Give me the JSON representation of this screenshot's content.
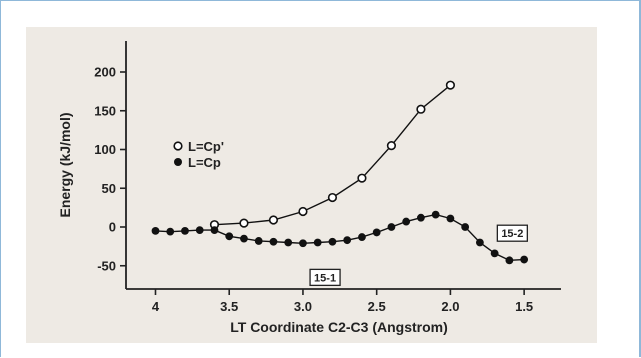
{
  "chart_data": {
    "type": "line",
    "xlabel": "LT Coordinate C2-C3 (Angstrom)",
    "ylabel": "Energy (kJ/mol)",
    "xlim": [
      4.2,
      1.25
    ],
    "ylim": [
      -80,
      240
    ],
    "x_reversed": true,
    "x_ticks": [
      4,
      3.5,
      3.0,
      2.5,
      2.0,
      1.5
    ],
    "x_tick_labels": [
      "4",
      "3.5",
      "3.0",
      "2.5",
      "2.0",
      "1.5"
    ],
    "y_ticks": [
      200,
      150,
      100,
      50,
      0,
      -50
    ],
    "y_tick_labels": [
      "200",
      "150",
      "100",
      "50",
      "0",
      "-50"
    ],
    "grid": false,
    "legend_position": "left",
    "series": [
      {
        "name": "L=Cp'",
        "marker": "open-circle",
        "color": "#111111",
        "x": [
          3.6,
          3.4,
          3.2,
          3.0,
          2.8,
          2.6,
          2.4,
          2.2,
          2.0
        ],
        "y": [
          3,
          5,
          9,
          20,
          38,
          63,
          105,
          152,
          183
        ]
      },
      {
        "name": "L=Cp",
        "marker": "filled-circle",
        "color": "#111111",
        "x": [
          4.0,
          3.9,
          3.8,
          3.7,
          3.6,
          3.5,
          3.4,
          3.3,
          3.2,
          3.1,
          3.0,
          2.9,
          2.8,
          2.7,
          2.6,
          2.5,
          2.4,
          2.3,
          2.2,
          2.1,
          2.0,
          1.9,
          1.8,
          1.7,
          1.6,
          1.5
        ],
        "y": [
          -5,
          -6,
          -5,
          -4,
          -4,
          -12,
          -15,
          -18,
          -19,
          -20,
          -21,
          -20,
          -19,
          -17,
          -13,
          -7,
          0,
          7,
          12,
          16,
          11,
          0,
          -20,
          -34,
          -43,
          -42
        ]
      }
    ],
    "annotations": [
      {
        "text": "15-1",
        "x": 2.85,
        "y": -65
      },
      {
        "text": "15-2",
        "x": 1.58,
        "y": -8
      }
    ]
  }
}
